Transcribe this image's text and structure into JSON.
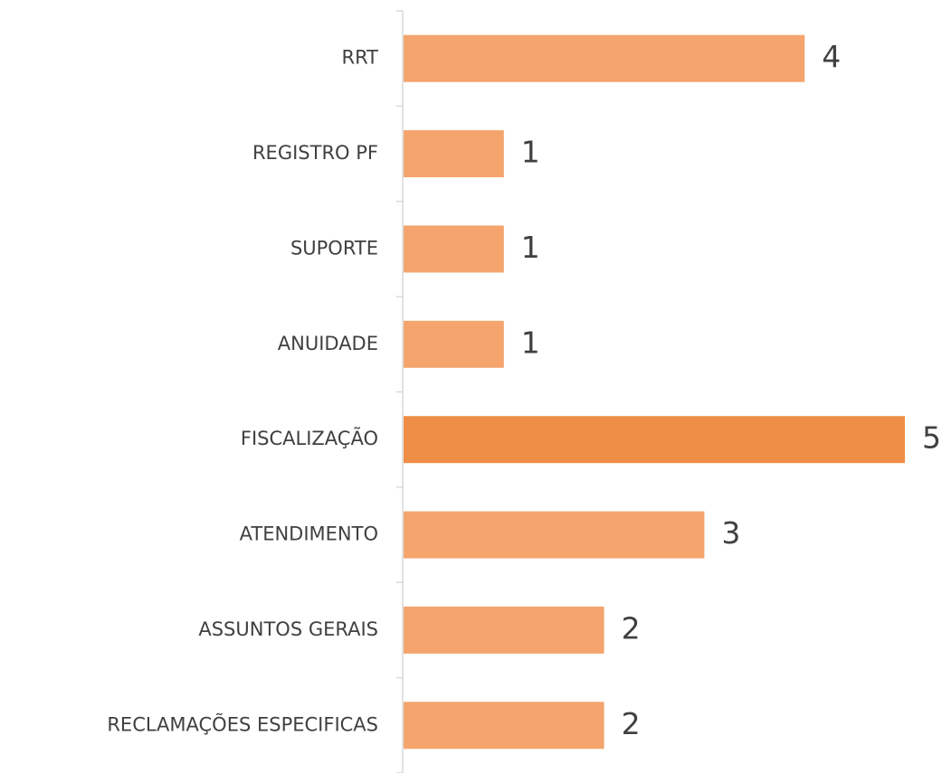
{
  "chart_data": {
    "type": "bar",
    "orientation": "horizontal",
    "categories": [
      "RRT",
      "REGISTRO PF",
      "SUPORTE",
      "ANUIDADE",
      "FISCALIZAÇÃO",
      "ATENDIMENTO",
      "ASSUNTOS GERAIS",
      "RECLAMAÇÕES ESPECIFICAS"
    ],
    "values": [
      4,
      1,
      1,
      1,
      5,
      3,
      2,
      2
    ],
    "colors": [
      "#f4a46c",
      "#f4a46c",
      "#f4a46c",
      "#f4a46c",
      "#ef8f47",
      "#f4a46c",
      "#f4a46c",
      "#f4a46c"
    ]
  }
}
